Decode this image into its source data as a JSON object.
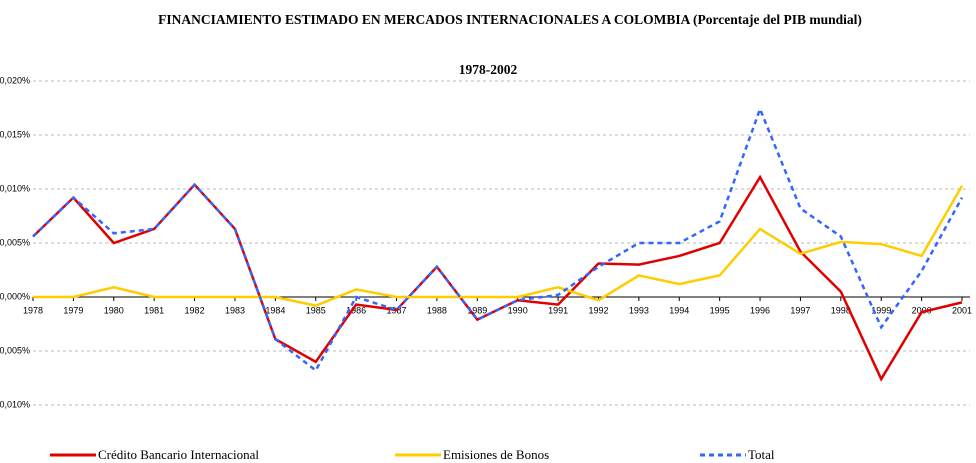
{
  "chart_data": {
    "type": "line",
    "title": "FINANCIAMIENTO ESTIMADO EN MERCADOS INTERNACIONALES A COLOMBIA (Porcentaje del PIB mundial)",
    "subtitle": "1978-2002",
    "categories": [
      "1978",
      "1979",
      "1980",
      "1981",
      "1982",
      "1983",
      "1984",
      "1985",
      "1986",
      "1987",
      "1988",
      "1989",
      "1990",
      "1991",
      "1992",
      "1993",
      "1994",
      "1995",
      "1996",
      "1997",
      "1998",
      "1999",
      "2000",
      "2001"
    ],
    "series": [
      {
        "name": "Crédito Bancario Internacional",
        "color": "#e00000",
        "line_style": "solid",
        "values": [
          0.0056,
          0.0092,
          0.005,
          0.0063,
          0.0104,
          0.0063,
          -0.0039,
          -0.006,
          -0.0007,
          -0.0012,
          0.0028,
          -0.0021,
          -0.0003,
          -0.0007,
          0.0031,
          0.003,
          0.0038,
          0.005,
          0.0111,
          0.0042,
          0.0005,
          -0.0076,
          -0.0014,
          -0.0005
        ]
      },
      {
        "name": "Emisiones de Bonos",
        "color": "#ffcc00",
        "line_style": "solid",
        "values": [
          0,
          0,
          0.0009,
          0,
          0,
          0,
          0,
          -0.0008,
          0.0007,
          0,
          0,
          0,
          0,
          0.0009,
          -0.0003,
          0.002,
          0.0012,
          0.002,
          0.0063,
          0.004,
          0.0051,
          0.0049,
          0.0038,
          0.0103
        ]
      },
      {
        "name": "Total",
        "color": "#3366ff",
        "line_style": "dashed",
        "values": [
          0.0056,
          0.0092,
          0.0059,
          0.0063,
          0.0104,
          0.0063,
          -0.0039,
          -0.0068,
          0.0,
          -0.0012,
          0.0028,
          -0.0021,
          -0.0003,
          0.0002,
          0.0028,
          0.005,
          0.005,
          0.007,
          0.0174,
          0.0082,
          0.0056,
          -0.0028,
          0.0024,
          0.0092
        ]
      }
    ],
    "ylim": [
      -0.01,
      0.02
    ],
    "yticks": [
      {
        "value": -0.01,
        "label": "-0,010%"
      },
      {
        "value": -0.005,
        "label": "-0,005%"
      },
      {
        "value": 0,
        "label": "0,000%"
      },
      {
        "value": 0.005,
        "label": "0,005%"
      },
      {
        "value": 0.01,
        "label": "0,010%"
      },
      {
        "value": 0.015,
        "label": "0,015%"
      },
      {
        "value": 0.02,
        "label": "0,020%"
      }
    ],
    "grid": true,
    "legend": "bottom"
  }
}
